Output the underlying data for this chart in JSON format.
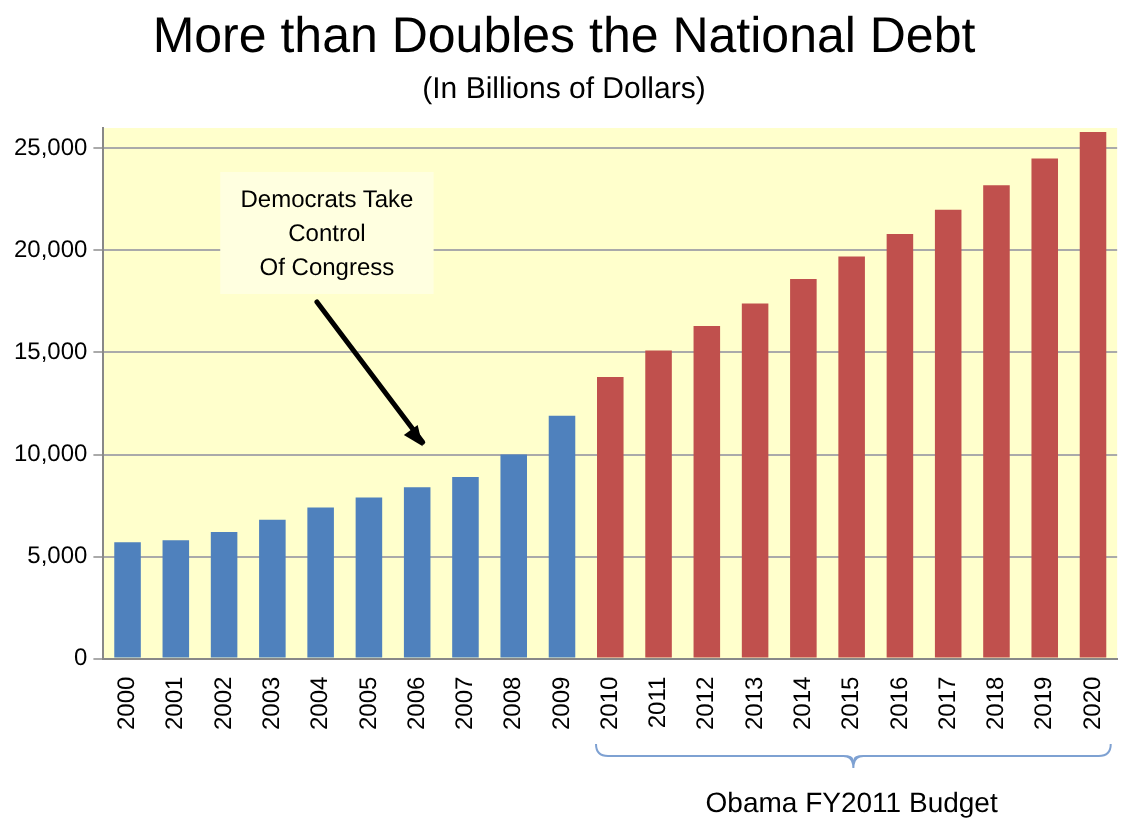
{
  "chart_data": {
    "type": "bar",
    "title": "More than Doubles the National Debt",
    "subtitle": "(In Billions of Dollars)",
    "categories": [
      "2000",
      "2001",
      "2002",
      "2003",
      "2004",
      "2005",
      "2006",
      "2007",
      "2008",
      "2009",
      "2010",
      "2011",
      "2012",
      "2013",
      "2014",
      "2015",
      "2016",
      "2017",
      "2018",
      "2019",
      "2020"
    ],
    "values": [
      5700,
      5800,
      6200,
      6800,
      7400,
      7900,
      8400,
      8900,
      10000,
      11900,
      13800,
      15100,
      16300,
      17400,
      18600,
      19700,
      20800,
      22000,
      23200,
      24500,
      25800
    ],
    "colors": [
      "#4f81bd",
      "#4f81bd",
      "#4f81bd",
      "#4f81bd",
      "#4f81bd",
      "#4f81bd",
      "#4f81bd",
      "#4f81bd",
      "#4f81bd",
      "#4f81bd",
      "#c0504d",
      "#c0504d",
      "#c0504d",
      "#c0504d",
      "#c0504d",
      "#c0504d",
      "#c0504d",
      "#c0504d",
      "#c0504d",
      "#c0504d",
      "#c0504d"
    ],
    "ylim": [
      0,
      26000
    ],
    "yticks": [
      0,
      {
        "value": 5000,
        "label": "5,000"
      },
      {
        "value": 10000,
        "label": "10,000"
      },
      {
        "value": 15000,
        "label": "15,000"
      },
      {
        "value": 20000,
        "label": "20,000"
      },
      {
        "value": 25000,
        "label": "25,000"
      }
    ],
    "grid": "y",
    "legend": false,
    "annotations": [
      "Democrats Take\nControl\nOf Congress",
      "Obama FY2011 Budget"
    ]
  }
}
